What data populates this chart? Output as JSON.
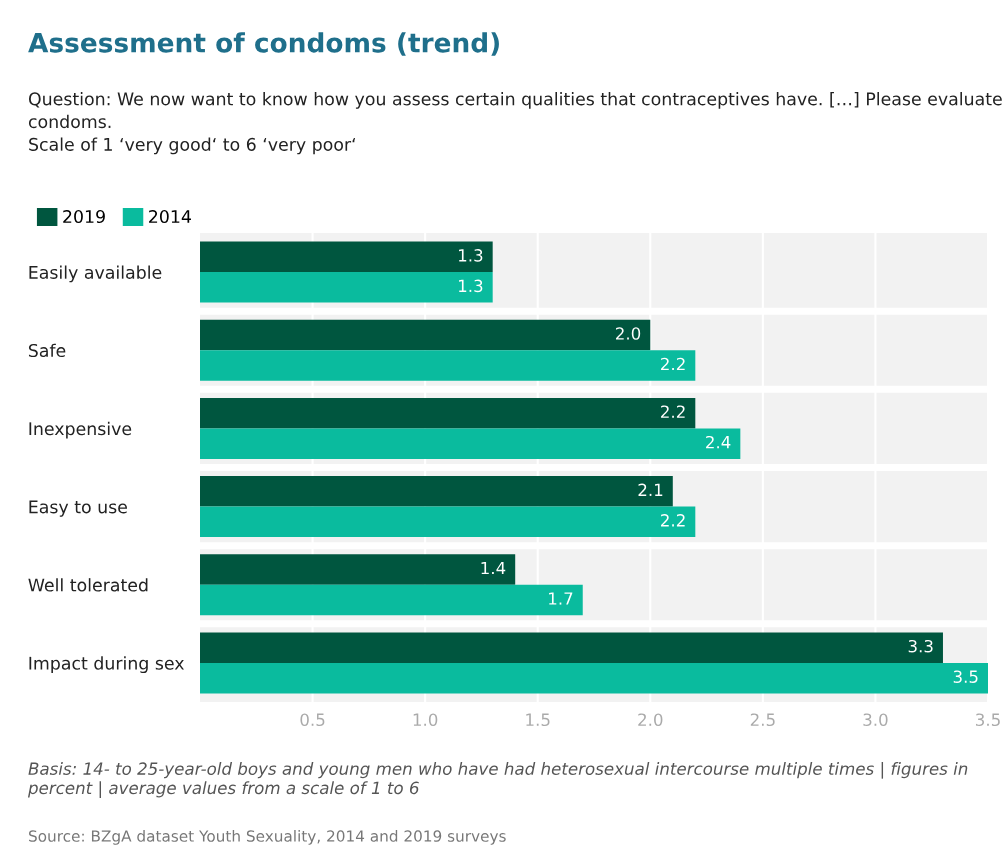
{
  "chart_data": {
    "type": "bar",
    "orientation": "horizontal",
    "title": "Assessment of condoms (trend)",
    "subtitle": "Question: We now want to know how you assess certain qualities that contraceptives have. […] Please evaluate condoms.\nScale of 1 ‘very good‘ to 6 ‘very poor‘",
    "categories": [
      "Easily available",
      "Safe",
      "Inexpensive",
      "Easy to use",
      "Well tolerated",
      "Impact during sex"
    ],
    "series": [
      {
        "name": "2019",
        "color": "#00563f",
        "values": [
          1.3,
          2.0,
          2.2,
          2.1,
          1.4,
          3.3
        ],
        "value_labels": [
          "1.3",
          "2.0",
          "2.2",
          "2.1",
          "1.4",
          "3.3"
        ]
      },
      {
        "name": "2014",
        "color": "#0abb9e",
        "values": [
          1.3,
          2.2,
          2.4,
          2.2,
          1.7,
          3.5
        ],
        "value_labels": [
          "1.3",
          "2.2",
          "2.4",
          "2.2",
          "1.7",
          "3.5"
        ]
      }
    ],
    "xlim": [
      0,
      3.5
    ],
    "xticks": [
      {
        "value": 0.5,
        "label": "0.5"
      },
      {
        "value": 1.0,
        "label": "1.0"
      },
      {
        "value": 1.5,
        "label": "1.5"
      },
      {
        "value": 2.0,
        "label": "2.0"
      },
      {
        "value": 2.5,
        "label": "2.5"
      },
      {
        "value": 3.0,
        "label": "3.0"
      },
      {
        "value": 3.5,
        "label": "3.5"
      }
    ],
    "grid": "x",
    "legend": "top left",
    "annotations": [
      "Basis: 14- to 25-year-old boys and young men who have had heterosexual intercourse multiple times | figures in percent | average values from a scale of 1 to 6",
      "Source: BZgA dataset Youth Sexuality, 2014 and 2019 surveys"
    ]
  }
}
